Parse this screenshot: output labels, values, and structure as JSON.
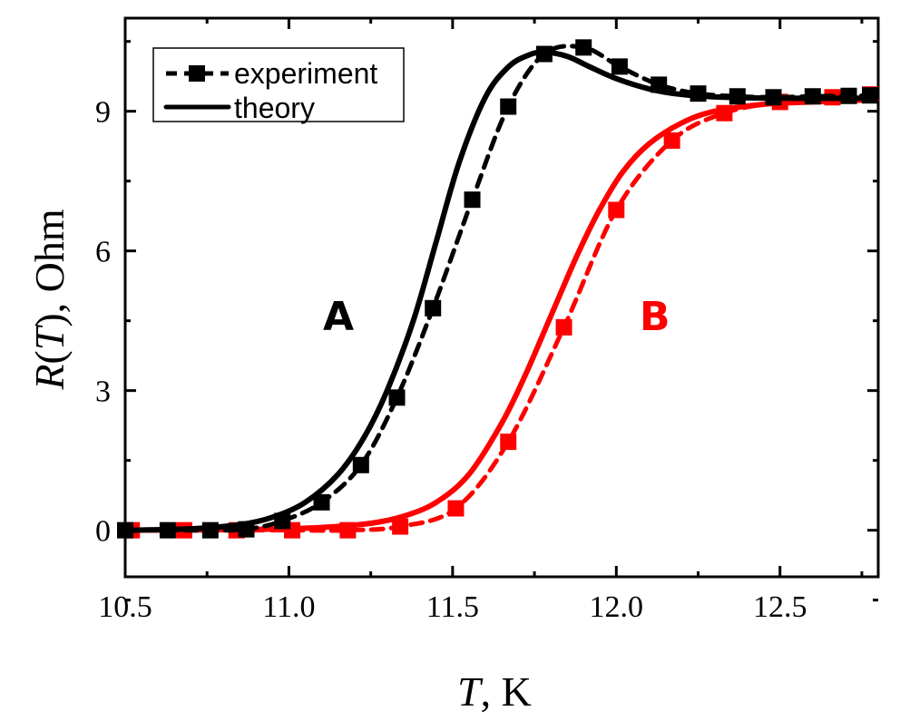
{
  "chart_data": {
    "type": "line",
    "title": "",
    "xlabel": {
      "var": "T",
      "rest": ", K"
    },
    "ylabel": {
      "var1": "R",
      "open": "(",
      "var2": "T",
      "rest": "), Ohm"
    },
    "xlim": [
      10.5,
      12.8
    ],
    "ylim": [
      -1,
      11
    ],
    "xticks": [
      10.5,
      11.0,
      11.5,
      12.0,
      12.5
    ],
    "xtick_labels": [
      "10.5",
      "11.0",
      "11.5",
      "12.0",
      "12.5"
    ],
    "yticks": [
      0,
      3,
      6,
      9
    ],
    "ytick_labels": [
      "0",
      "3",
      "6",
      "9"
    ],
    "grid": false,
    "legend": {
      "position": "top-left",
      "entries": [
        {
          "label": "experiment",
          "style": "dashed-square"
        },
        {
          "label": "theory",
          "style": "solid"
        }
      ]
    },
    "annotations": [
      {
        "text": "A",
        "x": 11.2,
        "y": 4.6,
        "color": "#000000"
      },
      {
        "text": "B",
        "x": 12.12,
        "y": 4.6,
        "color": "#ff0000"
      }
    ],
    "series": [
      {
        "name": "A experiment",
        "color": "#000000",
        "style": "dashed-square",
        "x": [
          10.5,
          10.63,
          10.76,
          10.87,
          10.98,
          11.1,
          11.22,
          11.33,
          11.44,
          11.56,
          11.67,
          11.78,
          11.9,
          12.01,
          12.13,
          12.25,
          12.37,
          12.48,
          12.6,
          12.71,
          12.8
        ],
        "y": [
          0,
          0,
          0,
          0.02,
          0.2,
          0.6,
          1.4,
          2.85,
          4.77,
          7.1,
          9.1,
          10.23,
          10.37,
          9.96,
          9.57,
          9.38,
          9.32,
          9.3,
          9.32,
          9.33,
          9.34
        ]
      },
      {
        "name": "A theory",
        "color": "#000000",
        "style": "solid",
        "x": [
          10.5,
          10.7,
          10.85,
          10.95,
          11.05,
          11.15,
          11.23,
          11.3,
          11.38,
          11.45,
          11.52,
          11.6,
          11.67,
          11.73,
          11.78,
          11.85,
          11.92,
          12.0,
          12.1,
          12.2,
          12.33,
          12.5,
          12.8
        ],
        "y": [
          0,
          0.03,
          0.12,
          0.28,
          0.6,
          1.2,
          2.0,
          3.0,
          4.5,
          6.2,
          7.9,
          9.3,
          9.95,
          10.2,
          10.27,
          10.18,
          9.95,
          9.7,
          9.48,
          9.36,
          9.3,
          9.28,
          9.28
        ]
      },
      {
        "name": "B experiment",
        "color": "#ff0000",
        "style": "dashed-square",
        "x": [
          10.52,
          10.68,
          10.84,
          11.01,
          11.18,
          11.34,
          11.51,
          11.67,
          11.84,
          12.0,
          12.17,
          12.33,
          12.5,
          12.66,
          12.8
        ],
        "y": [
          0,
          0,
          0,
          0,
          0,
          0.08,
          0.47,
          1.9,
          4.36,
          6.88,
          8.37,
          8.96,
          9.2,
          9.3,
          9.36
        ]
      },
      {
        "name": "B theory",
        "color": "#ff0000",
        "style": "solid",
        "x": [
          10.5,
          10.9,
          11.1,
          11.25,
          11.35,
          11.45,
          11.55,
          11.65,
          11.72,
          11.8,
          11.88,
          11.95,
          12.02,
          12.1,
          12.2,
          12.3,
          12.45,
          12.6,
          12.8
        ],
        "y": [
          0,
          0.02,
          0.06,
          0.15,
          0.3,
          0.6,
          1.2,
          2.3,
          3.3,
          4.6,
          5.9,
          6.9,
          7.7,
          8.3,
          8.75,
          9.0,
          9.15,
          9.2,
          9.25
        ]
      }
    ]
  }
}
